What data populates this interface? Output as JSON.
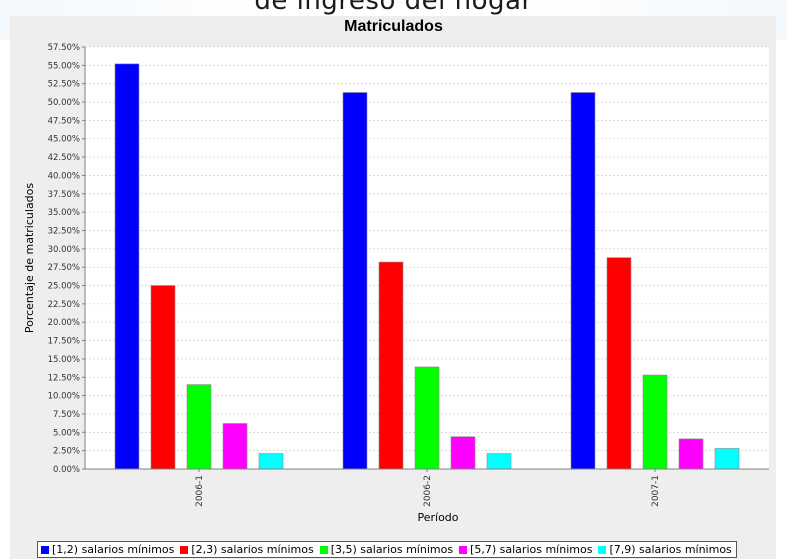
{
  "page": {
    "heading": "de ingreso del hogar"
  },
  "chart_data": {
    "type": "bar",
    "title": "Matriculados",
    "xlabel": "Período",
    "ylabel": "Porcentaje de matriculados",
    "ylim": [
      0,
      57.5
    ],
    "y_ticks": [
      "0.00%",
      "2.50%",
      "5.00%",
      "7.50%",
      "10.00%",
      "12.50%",
      "15.00%",
      "17.50%",
      "20.00%",
      "22.50%",
      "25.00%",
      "27.50%",
      "30.00%",
      "32.50%",
      "35.00%",
      "37.50%",
      "40.00%",
      "42.50%",
      "45.00%",
      "47.50%",
      "50.00%",
      "52.50%",
      "55.00%",
      "57.50%"
    ],
    "categories": [
      "2006-1",
      "2006-2",
      "2007-1"
    ],
    "grid": true,
    "legend_position": "bottom",
    "series": [
      {
        "name": "[1,2) salarios mínimos",
        "color": "#0000ff",
        "values": [
          55.2,
          51.3,
          51.3
        ]
      },
      {
        "name": "[2,3) salarios mínimos",
        "color": "#ff0000",
        "values": [
          25.0,
          28.2,
          28.8
        ]
      },
      {
        "name": "[3,5) salarios mínimos",
        "color": "#00ff00",
        "values": [
          11.5,
          13.9,
          12.8
        ]
      },
      {
        "name": "[5,7) salarios mínimos",
        "color": "#ff00ff",
        "values": [
          6.2,
          4.4,
          4.1
        ]
      },
      {
        "name": "[7,9) salarios mínimos",
        "color": "#00ffff",
        "values": [
          2.1,
          2.1,
          2.8
        ]
      }
    ]
  }
}
